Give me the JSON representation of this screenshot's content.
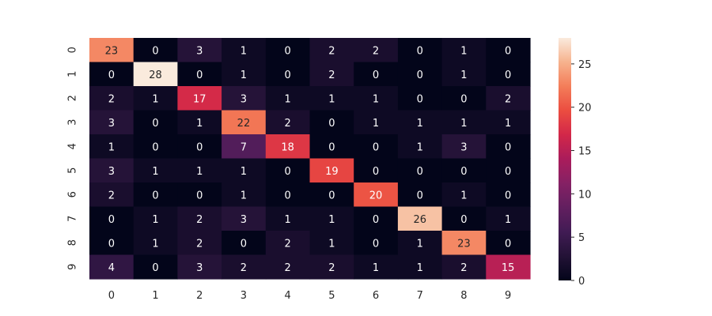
{
  "chart_data": {
    "type": "heatmap",
    "title": "",
    "xlabel": "",
    "ylabel": "",
    "x_categories": [
      "0",
      "1",
      "2",
      "3",
      "4",
      "5",
      "6",
      "7",
      "8",
      "9"
    ],
    "y_categories": [
      "0",
      "1",
      "2",
      "3",
      "4",
      "5",
      "6",
      "7",
      "8",
      "9"
    ],
    "matrix": [
      [
        23,
        0,
        3,
        1,
        0,
        2,
        2,
        0,
        1,
        0
      ],
      [
        0,
        28,
        0,
        1,
        0,
        2,
        0,
        0,
        1,
        0
      ],
      [
        2,
        1,
        17,
        3,
        1,
        1,
        1,
        0,
        0,
        2
      ],
      [
        3,
        0,
        1,
        22,
        2,
        0,
        1,
        1,
        1,
        1
      ],
      [
        1,
        0,
        0,
        7,
        18,
        0,
        0,
        1,
        3,
        0
      ],
      [
        3,
        1,
        1,
        1,
        0,
        19,
        0,
        0,
        0,
        0
      ],
      [
        2,
        0,
        0,
        1,
        0,
        0,
        20,
        0,
        1,
        0
      ],
      [
        0,
        1,
        2,
        3,
        1,
        1,
        0,
        26,
        0,
        1
      ],
      [
        0,
        1,
        2,
        0,
        2,
        1,
        0,
        1,
        23,
        0
      ],
      [
        4,
        0,
        3,
        2,
        2,
        2,
        1,
        1,
        2,
        15
      ]
    ],
    "colorbar": {
      "min": 0,
      "max": 28,
      "ticks": [
        "0",
        "5",
        "10",
        "15",
        "20",
        "25"
      ],
      "colormap": "rocket"
    },
    "grid": false,
    "legend": "colorbar-right"
  }
}
